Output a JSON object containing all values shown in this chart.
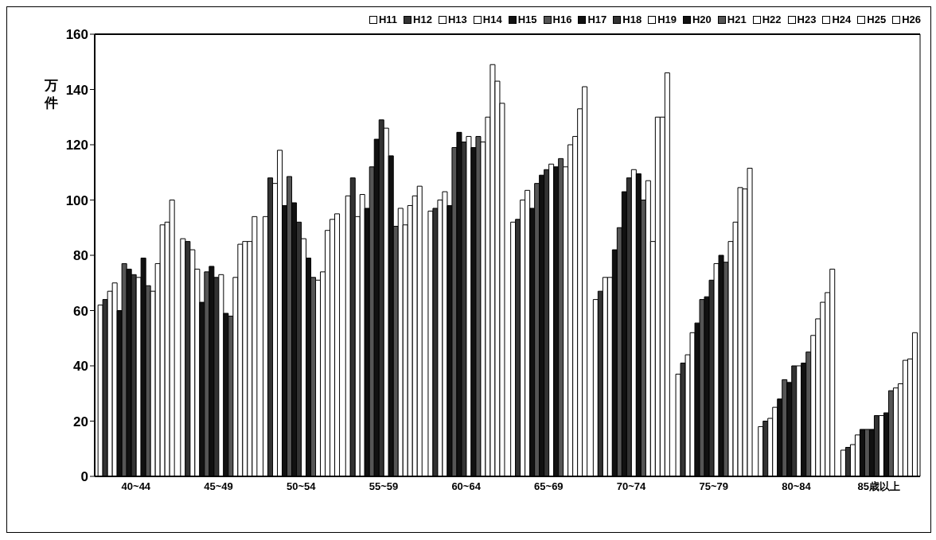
{
  "chart_data": {
    "type": "bar",
    "ylabel": "万件",
    "categories": [
      "40~44",
      "45~49",
      "50~54",
      "55~59",
      "60~64",
      "65~69",
      "70~74",
      "75~79",
      "80~84",
      "85歳以上"
    ],
    "ylim": [
      0,
      160
    ],
    "yticks": [
      0,
      20,
      40,
      60,
      80,
      100,
      120,
      140,
      160
    ],
    "legend": "top right",
    "series": [
      {
        "name": "H11",
        "color": "#ffffff",
        "values": [
          62,
          86,
          94,
          101.5,
          96,
          92,
          64,
          37,
          18,
          9.5
        ]
      },
      {
        "name": "H12",
        "color": "#333333",
        "values": [
          64,
          85,
          108,
          108,
          97,
          93,
          67,
          41,
          20,
          10.5
        ]
      },
      {
        "name": "H13",
        "color": "#ffffff",
        "values": [
          67,
          82,
          106,
          94,
          100,
          100,
          72,
          44,
          21,
          11.5
        ]
      },
      {
        "name": "H14",
        "color": "#ffffff",
        "values": [
          70,
          75,
          118,
          102,
          103,
          103.5,
          72,
          52,
          25,
          15
        ]
      },
      {
        "name": "H15",
        "color": "#111111",
        "values": [
          60,
          63,
          98,
          97,
          98,
          97,
          82,
          55.5,
          28,
          17
        ]
      },
      {
        "name": "H16",
        "color": "#555555",
        "values": [
          77,
          74,
          108.5,
          112,
          119,
          106,
          90,
          64,
          35,
          17
        ]
      },
      {
        "name": "H17",
        "color": "#111111",
        "values": [
          75,
          76,
          99,
          122,
          124.5,
          109,
          103,
          65,
          34,
          17
        ]
      },
      {
        "name": "H18",
        "color": "#333333",
        "values": [
          73,
          72,
          92,
          129,
          121,
          111,
          108,
          71,
          40,
          22
        ]
      },
      {
        "name": "H19",
        "color": "#ffffff",
        "values": [
          72,
          73,
          86,
          126,
          123,
          113,
          111,
          77,
          40,
          22
        ]
      },
      {
        "name": "H20",
        "color": "#111111",
        "values": [
          79,
          59,
          79,
          116,
          119,
          112,
          109.5,
          80,
          41,
          23
        ]
      },
      {
        "name": "H21",
        "color": "#555555",
        "values": [
          69,
          58,
          72,
          90.5,
          123,
          115,
          100,
          77.5,
          45,
          31
        ]
      },
      {
        "name": "H22",
        "color": "#ffffff",
        "values": [
          67,
          72,
          71,
          97,
          121,
          112,
          107,
          85,
          51,
          32
        ]
      },
      {
        "name": "H23",
        "color": "#ffffff",
        "values": [
          77,
          84,
          74,
          91,
          130,
          120,
          85,
          92,
          57,
          33.5
        ]
      },
      {
        "name": "H24",
        "color": "#ffffff",
        "values": [
          91,
          85,
          89,
          98,
          149,
          123,
          130,
          104.5,
          63,
          42
        ]
      },
      {
        "name": "H25",
        "color": "#ffffff",
        "values": [
          92,
          85,
          93,
          101.5,
          143,
          133,
          130,
          104,
          66.5,
          42.5
        ]
      },
      {
        "name": "H26",
        "color": "#ffffff",
        "values": [
          100,
          94,
          95,
          105,
          135,
          141,
          146,
          111.5,
          75,
          52
        ]
      }
    ]
  }
}
